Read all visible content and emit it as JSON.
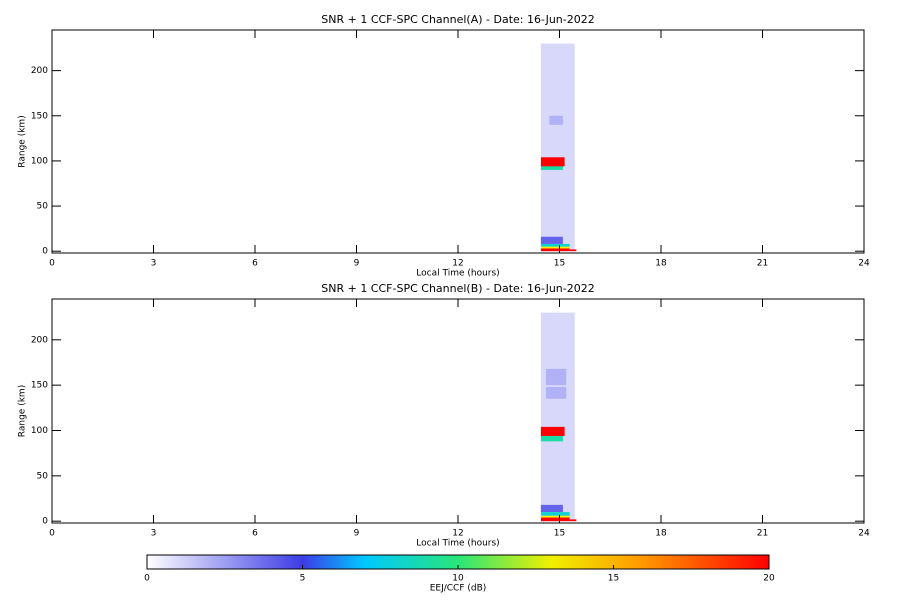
{
  "chart_data": [
    {
      "type": "heatmap",
      "title": "SNR + 1 CCF-SPC Channel(A) - Date: 16-Jun-2022",
      "xlabel": "Local Time (hours)",
      "ylabel": "Range (km)",
      "xlim": [
        0,
        24
      ],
      "xticks": [
        0,
        3,
        6,
        9,
        12,
        15,
        18,
        21,
        24
      ],
      "ylim": [
        -2,
        245
      ],
      "yticks": [
        0,
        50,
        100,
        150,
        200
      ],
      "cells": [
        {
          "x": [
            14.45,
            15.45
          ],
          "y": [
            0,
            230
          ],
          "value": 1
        },
        {
          "x": [
            14.7,
            15.1
          ],
          "y": [
            140,
            150
          ],
          "value": 2
        },
        {
          "x": [
            14.45,
            15.1
          ],
          "y": [
            90,
            95
          ],
          "value": 9
        },
        {
          "x": [
            14.45,
            15.15
          ],
          "y": [
            94,
            104
          ],
          "value": 20
        },
        {
          "x": [
            14.45,
            15.1
          ],
          "y": [
            8,
            16
          ],
          "value": 4
        },
        {
          "x": [
            14.45,
            15.3
          ],
          "y": [
            5,
            8
          ],
          "value": 8
        },
        {
          "x": [
            14.45,
            15.3
          ],
          "y": [
            3,
            5
          ],
          "value": 13
        },
        {
          "x": [
            14.45,
            15.3
          ],
          "y": [
            0,
            3
          ],
          "value": 20
        },
        {
          "x": [
            15.3,
            15.5
          ],
          "y": [
            0,
            2
          ],
          "value": 20
        }
      ]
    },
    {
      "type": "heatmap",
      "title": "SNR + 1 CCF-SPC Channel(B) - Date: 16-Jun-2022",
      "xlabel": "Local Time (hours)",
      "ylabel": "Range (km)",
      "xlim": [
        0,
        24
      ],
      "xticks": [
        0,
        3,
        6,
        9,
        12,
        15,
        18,
        21,
        24
      ],
      "ylim": [
        -2,
        245
      ],
      "yticks": [
        0,
        50,
        100,
        150,
        200
      ],
      "cells": [
        {
          "x": [
            14.45,
            15.45
          ],
          "y": [
            0,
            230
          ],
          "value": 1
        },
        {
          "x": [
            14.6,
            15.2
          ],
          "y": [
            150,
            168
          ],
          "value": 2
        },
        {
          "x": [
            14.6,
            15.2
          ],
          "y": [
            135,
            148
          ],
          "value": 2
        },
        {
          "x": [
            14.45,
            15.1
          ],
          "y": [
            88,
            95
          ],
          "value": 9
        },
        {
          "x": [
            14.45,
            15.15
          ],
          "y": [
            94,
            104
          ],
          "value": 20
        },
        {
          "x": [
            14.45,
            15.1
          ],
          "y": [
            10,
            18
          ],
          "value": 4
        },
        {
          "x": [
            14.45,
            15.3
          ],
          "y": [
            6,
            10
          ],
          "value": 8
        },
        {
          "x": [
            14.45,
            15.3
          ],
          "y": [
            4,
            6
          ],
          "value": 13
        },
        {
          "x": [
            14.45,
            15.3
          ],
          "y": [
            0,
            4
          ],
          "value": 20
        },
        {
          "x": [
            15.3,
            15.5
          ],
          "y": [
            0,
            2
          ],
          "value": 20
        }
      ]
    }
  ],
  "colorbar": {
    "label": "EEJ/CCF (dB)",
    "lim": [
      0,
      20
    ],
    "ticks": [
      0,
      5,
      10,
      15,
      20
    ]
  }
}
